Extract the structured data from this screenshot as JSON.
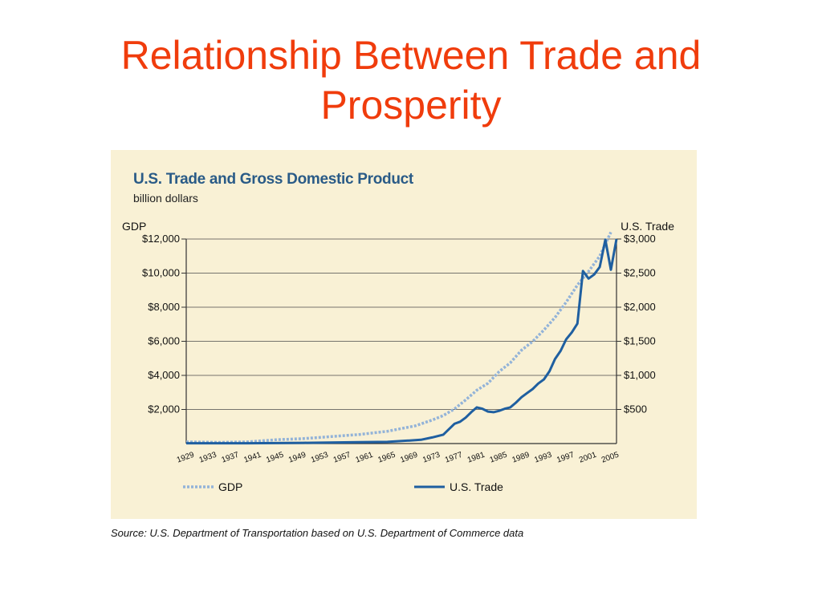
{
  "slide": {
    "title_line1": "Relationship Between Trade and",
    "title_line2": "Prosperity",
    "title_color": "#f03c0c"
  },
  "source": "Source: U.S. Department of Transportation based on U.S. Department of Commerce data",
  "chart_data": {
    "type": "line",
    "title": "U.S. Trade and Gross Domestic Product",
    "subtitle": "billion dollars",
    "left_axis_label": "GDP",
    "right_axis_label": "U.S. Trade",
    "left_ticks": [
      "$2,000",
      "$4,000",
      "$6,000",
      "$8,000",
      "$10,000",
      "$12,000"
    ],
    "left_tick_values": [
      2000,
      4000,
      6000,
      8000,
      10000,
      12000
    ],
    "right_ticks": [
      "$500",
      "$1,000",
      "$1,500",
      "$2,000",
      "$2,500",
      "$3,000"
    ],
    "right_tick_values": [
      500,
      1000,
      1500,
      2000,
      2500,
      3000
    ],
    "left_ylim": [
      0,
      12000
    ],
    "right_ylim": [
      0,
      3000
    ],
    "x_tick_labels": [
      "1929",
      "1933",
      "1937",
      "1941",
      "1945",
      "1949",
      "1953",
      "1957",
      "1961",
      "1965",
      "1969",
      "1973",
      "1977",
      "1981",
      "1985",
      "1989",
      "1993",
      "1997",
      "2001",
      "2005"
    ],
    "xlim": [
      1929,
      2006
    ],
    "grid": true,
    "legend_position": "bottom",
    "series": [
      {
        "name": "GDP",
        "axis": "left",
        "style": "dotted",
        "color": "#93b3d8",
        "points": [
          [
            1929,
            100
          ],
          [
            1935,
            70
          ],
          [
            1940,
            100
          ],
          [
            1945,
            220
          ],
          [
            1950,
            290
          ],
          [
            1955,
            410
          ],
          [
            1960,
            530
          ],
          [
            1965,
            720
          ],
          [
            1970,
            1040
          ],
          [
            1973,
            1380
          ],
          [
            1975,
            1640
          ],
          [
            1977,
            2030
          ],
          [
            1979,
            2560
          ],
          [
            1981,
            3130
          ],
          [
            1983,
            3540
          ],
          [
            1985,
            4220
          ],
          [
            1987,
            4740
          ],
          [
            1989,
            5480
          ],
          [
            1991,
            5990
          ],
          [
            1993,
            6660
          ],
          [
            1995,
            7400
          ],
          [
            1997,
            8300
          ],
          [
            1999,
            9300
          ],
          [
            2001,
            10100
          ],
          [
            2003,
            11000
          ],
          [
            2005,
            12400
          ]
        ]
      },
      {
        "name": "U.S. Trade",
        "axis": "right",
        "style": "solid",
        "color": "#1f5fa0",
        "points": [
          [
            1929,
            5
          ],
          [
            1940,
            5
          ],
          [
            1950,
            10
          ],
          [
            1960,
            20
          ],
          [
            1965,
            25
          ],
          [
            1969,
            45
          ],
          [
            1970,
            50
          ],
          [
            1971,
            55
          ],
          [
            1973,
            90
          ],
          [
            1975,
            130
          ],
          [
            1977,
            290
          ],
          [
            1978,
            320
          ],
          [
            1979,
            380
          ],
          [
            1980,
            460
          ],
          [
            1981,
            530
          ],
          [
            1982,
            510
          ],
          [
            1983,
            470
          ],
          [
            1984,
            460
          ],
          [
            1985,
            480
          ],
          [
            1986,
            510
          ],
          [
            1987,
            530
          ],
          [
            1988,
            600
          ],
          [
            1989,
            680
          ],
          [
            1990,
            740
          ],
          [
            1991,
            800
          ],
          [
            1992,
            880
          ],
          [
            1993,
            940
          ],
          [
            1994,
            1060
          ],
          [
            1995,
            1240
          ],
          [
            1996,
            1360
          ],
          [
            1997,
            1530
          ],
          [
            1998,
            1630
          ],
          [
            1999,
            1760
          ],
          [
            2000,
            2530
          ],
          [
            2001,
            2420
          ],
          [
            2002,
            2480
          ],
          [
            2003,
            2590
          ],
          [
            2004,
            2990
          ],
          [
            2005,
            2550
          ],
          [
            2006,
            3000
          ]
        ]
      }
    ]
  }
}
